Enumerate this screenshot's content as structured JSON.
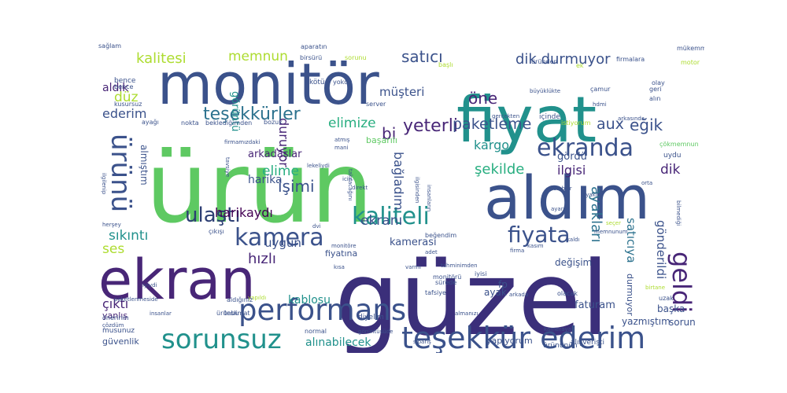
{
  "colors": {
    "c1": "#482677",
    "c2": "#3b528b",
    "c3": "#2c728e",
    "c4": "#21918c",
    "c5": "#28ae80",
    "c6": "#5ec962",
    "c7": "#addc30",
    "c8": "#fde725",
    "c9": "#440154"
  },
  "words": [
    {
      "text": "ürün",
      "color": "#5ec962"
    },
    {
      "text": "güzel",
      "color": "#3b2f7a"
    },
    {
      "text": "fiyat",
      "color": "#21918c"
    },
    {
      "text": "monitör",
      "color": "#3b528b"
    },
    {
      "text": "aldım",
      "color": "#3b528b"
    },
    {
      "text": "ekran",
      "color": "#482677"
    },
    {
      "text": "teşekkür ederim",
      "color": "#3b528b"
    },
    {
      "text": "performans",
      "color": "#3b528b"
    },
    {
      "text": "sorunsuz",
      "color": "#21918c"
    },
    {
      "text": "kamera",
      "color": "#3b528b"
    },
    {
      "text": "kaliteli",
      "color": "#21918c"
    },
    {
      "text": "ekranda",
      "color": "#3b528b"
    },
    {
      "text": "fiyata",
      "color": "#3b528b"
    },
    {
      "text": "ürünü",
      "color": "#3b528b"
    },
    {
      "text": "ulaştı",
      "color": "#2c3e73"
    },
    {
      "text": "geldi",
      "color": "#482677"
    },
    {
      "text": "teşekkürler",
      "color": "#2c728e"
    },
    {
      "text": "yeterli",
      "color": "#482677"
    },
    {
      "text": "harikaydı",
      "color": "#440154"
    },
    {
      "text": "ayakları",
      "color": "#2c728e"
    },
    {
      "text": "kalitesi",
      "color": "#addc30"
    },
    {
      "text": "memnun",
      "color": "#addc30"
    },
    {
      "text": "satıcı",
      "color": "#3b528b"
    },
    {
      "text": "dik durmuyor",
      "color": "#3b528b"
    },
    {
      "text": "düz",
      "color": "#addc30"
    },
    {
      "text": "öne",
      "color": "#482677"
    },
    {
      "text": "müşteri",
      "color": "#3b528b"
    },
    {
      "text": "paketleme",
      "color": "#3b528b"
    },
    {
      "text": "aux",
      "color": "#3b528b"
    },
    {
      "text": "eğik",
      "color": "#3b528b"
    },
    {
      "text": "kargo",
      "color": "#21918c"
    },
    {
      "text": "şekilde",
      "color": "#28ae80"
    },
    {
      "text": "elime",
      "color": "#28ae80"
    },
    {
      "text": "işimi",
      "color": "#3b528b"
    },
    {
      "text": "elimize",
      "color": "#28ae80"
    },
    {
      "text": "uygun",
      "color": "#3b528b"
    },
    {
      "text": "hızlı",
      "color": "#482677"
    },
    {
      "text": "sıkıntı",
      "color": "#21918c"
    },
    {
      "text": "ekranı",
      "color": "#3b528b"
    },
    {
      "text": "ederim",
      "color": "#3b528b"
    },
    {
      "text": "aldık",
      "color": "#482677"
    },
    {
      "text": "bi",
      "color": "#482677"
    },
    {
      "text": "görüntü",
      "color": "#21918c"
    },
    {
      "text": "duruyor",
      "color": "#482677"
    },
    {
      "text": "bağladım",
      "color": "#3b528b"
    },
    {
      "text": "harika",
      "color": "#3b528b"
    },
    {
      "text": "arkadaşlar",
      "color": "#482677"
    },
    {
      "text": "ilgisi",
      "color": "#482677"
    },
    {
      "text": "dik",
      "color": "#482677"
    },
    {
      "text": "gördü",
      "color": "#3b528b"
    },
    {
      "text": "satıcıya",
      "color": "#2c728e"
    },
    {
      "text": "gönderildi",
      "color": "#3b528b"
    },
    {
      "text": "kablosu",
      "color": "#21918c"
    },
    {
      "text": "ses",
      "color": "#addc30"
    },
    {
      "text": "çıktı",
      "color": "#482677"
    },
    {
      "text": "alınabilecek",
      "color": "#21918c"
    },
    {
      "text": "kamerası",
      "color": "#3b528b"
    },
    {
      "text": "fiyatına",
      "color": "#3b528b"
    },
    {
      "text": "almıştım",
      "color": "#3b528b"
    },
    {
      "text": "ayak",
      "color": "#3b528b"
    },
    {
      "text": "faturam",
      "color": "#3b528b"
    },
    {
      "text": "fp",
      "color": "#3b528b"
    },
    {
      "text": "değişim",
      "color": "#3b528b"
    },
    {
      "text": "durmuyor",
      "color": "#3b528b"
    },
    {
      "text": "başka",
      "color": "#3b528b"
    },
    {
      "text": "sorun",
      "color": "#3b528b"
    },
    {
      "text": "yazmıştım",
      "color": "#3b528b"
    },
    {
      "text": "yapıyorum",
      "color": "#3b528b"
    },
    {
      "text": "alışverişti",
      "color": "#3b528b"
    },
    {
      "text": "ürününün",
      "color": "#3b528b"
    },
    {
      "text": "yanlış",
      "color": "#482677"
    },
    {
      "text": "güvenlik",
      "color": "#3b528b"
    },
    {
      "text": "diyelim",
      "color": "#3b528b"
    },
    {
      "text": "musunuz",
      "color": "#3b528b"
    },
    {
      "text": "önerirım",
      "color": "#3b528b"
    },
    {
      "text": "uzak",
      "color": "#3b528b"
    },
    {
      "text": "uydu",
      "color": "#3b528b"
    },
    {
      "text": "çökmemnun",
      "color": "#5ec962"
    },
    {
      "text": "başarılı",
      "color": "#5ec962"
    },
    {
      "text": "bence",
      "color": "#3b528b"
    },
    {
      "text": "sağlam",
      "color": "#3b528b"
    },
    {
      "text": "aparatın",
      "color": "#3b528b"
    },
    {
      "text": "birsürü",
      "color": "#3b528b"
    },
    {
      "text": "sorunu",
      "color": "#addc30"
    },
    {
      "text": "başlı",
      "color": "#addc30"
    },
    {
      "text": "üründen",
      "color": "#3b528b"
    },
    {
      "text": "ek",
      "color": "#addc30"
    },
    {
      "text": "firmalara",
      "color": "#3b528b"
    },
    {
      "text": "mükemmel",
      "color": "#3b528b"
    },
    {
      "text": "motor",
      "color": "#addc30"
    },
    {
      "text": "olay",
      "color": "#3b528b"
    },
    {
      "text": "çamur",
      "color": "#3b528b"
    },
    {
      "text": "kusursuz",
      "color": "#3b528b"
    },
    {
      "text": "kötü",
      "color": "#3b528b"
    },
    {
      "text": "yokdu",
      "color": "#3b528b"
    },
    {
      "text": "ayağı",
      "color": "#3b528b"
    },
    {
      "text": "nokta",
      "color": "#3b528b"
    },
    {
      "text": "beklediğimden",
      "color": "#3b528b"
    },
    {
      "text": "bozuk",
      "color": "#3b528b"
    },
    {
      "text": "içinde",
      "color": "#3b528b"
    },
    {
      "text": "istiyorum",
      "color": "#addc30"
    },
    {
      "text": "arkasında",
      "color": "#3b528b"
    },
    {
      "text": "büyüklükte",
      "color": "#3b528b"
    },
    {
      "text": "alın",
      "color": "#3b528b"
    },
    {
      "text": "geri",
      "color": "#3b528b"
    },
    {
      "text": "hdmi",
      "color": "#3b528b"
    },
    {
      "text": "server",
      "color": "#3b528b"
    },
    {
      "text": "gerçekten",
      "color": "#3b528b"
    },
    {
      "text": "firmamızdaki",
      "color": "#3b528b"
    },
    {
      "text": "atmış",
      "color": "#3b528b"
    },
    {
      "text": "mani",
      "color": "#3b528b"
    },
    {
      "text": "direkt",
      "color": "#3b528b"
    },
    {
      "text": "icin",
      "color": "#3b528b"
    },
    {
      "text": "ilgilenip",
      "color": "#3b528b"
    },
    {
      "text": "olabilir",
      "color": "#3b528b"
    },
    {
      "text": "ayakla",
      "color": "#3b528b"
    },
    {
      "text": "ayarı",
      "color": "#3b528b"
    },
    {
      "text": "orta",
      "color": "#3b528b"
    },
    {
      "text": "bilmediği",
      "color": "#3b528b"
    },
    {
      "text": "herşey",
      "color": "#3b528b"
    },
    {
      "text": "kaldı",
      "color": "#3b528b"
    },
    {
      "text": "memnunum",
      "color": "#3b528b"
    },
    {
      "text": "beğendim",
      "color": "#3b528b"
    },
    {
      "text": "çıkışı",
      "color": "#3b528b"
    },
    {
      "text": "dvi",
      "color": "#3b528b"
    },
    {
      "text": "monitöre",
      "color": "#3b528b"
    },
    {
      "text": "adet",
      "color": "#3b528b"
    },
    {
      "text": "varmı",
      "color": "#3b528b"
    },
    {
      "text": "kısa",
      "color": "#3b528b"
    },
    {
      "text": "tahminimden",
      "color": "#3b528b"
    },
    {
      "text": "firma",
      "color": "#3b528b"
    },
    {
      "text": "kasım",
      "color": "#3b528b"
    },
    {
      "text": "monitörü",
      "color": "#3b528b"
    },
    {
      "text": "iyisi",
      "color": "#3b528b"
    },
    {
      "text": "sürede",
      "color": "#3b528b"
    },
    {
      "text": "tafsiye",
      "color": "#3b528b"
    },
    {
      "text": "iyiydi",
      "color": "#3b528b"
    },
    {
      "text": "arkada",
      "color": "#3b528b"
    },
    {
      "text": "olacak",
      "color": "#3b528b"
    },
    {
      "text": "yapıldı",
      "color": "#addc30"
    },
    {
      "text": "paketlenmeside",
      "color": "#3b528b"
    },
    {
      "text": "aldığınız",
      "color": "#3b528b"
    },
    {
      "text": "ürünbu",
      "color": "#3b528b"
    },
    {
      "text": "teslimat",
      "color": "#3b528b"
    },
    {
      "text": "insanlar",
      "color": "#3b528b"
    },
    {
      "text": "almanızı",
      "color": "#3b528b"
    },
    {
      "text": "çözdüm",
      "color": "#3b528b"
    },
    {
      "text": "siparış",
      "color": "#3b528b"
    },
    {
      "text": "normal",
      "color": "#3b528b"
    },
    {
      "text": "görüntüsüde",
      "color": "#3b528b"
    },
    {
      "text": "kameraya",
      "color": "#3b528b"
    },
    {
      "text": "birtane",
      "color": "#addc30"
    },
    {
      "text": "lekeliydi",
      "color": "#3b528b"
    },
    {
      "text": "takılacağını",
      "color": "#3b528b"
    },
    {
      "text": "ilgisinden",
      "color": "#3b528b"
    },
    {
      "text": "insanların",
      "color": "#3b528b"
    },
    {
      "text": "tavsiye",
      "color": "#3b528b"
    },
    {
      "text": "bence",
      "color": "#3b528b"
    },
    {
      "text": "seçer",
      "color": "#addc30"
    }
  ]
}
